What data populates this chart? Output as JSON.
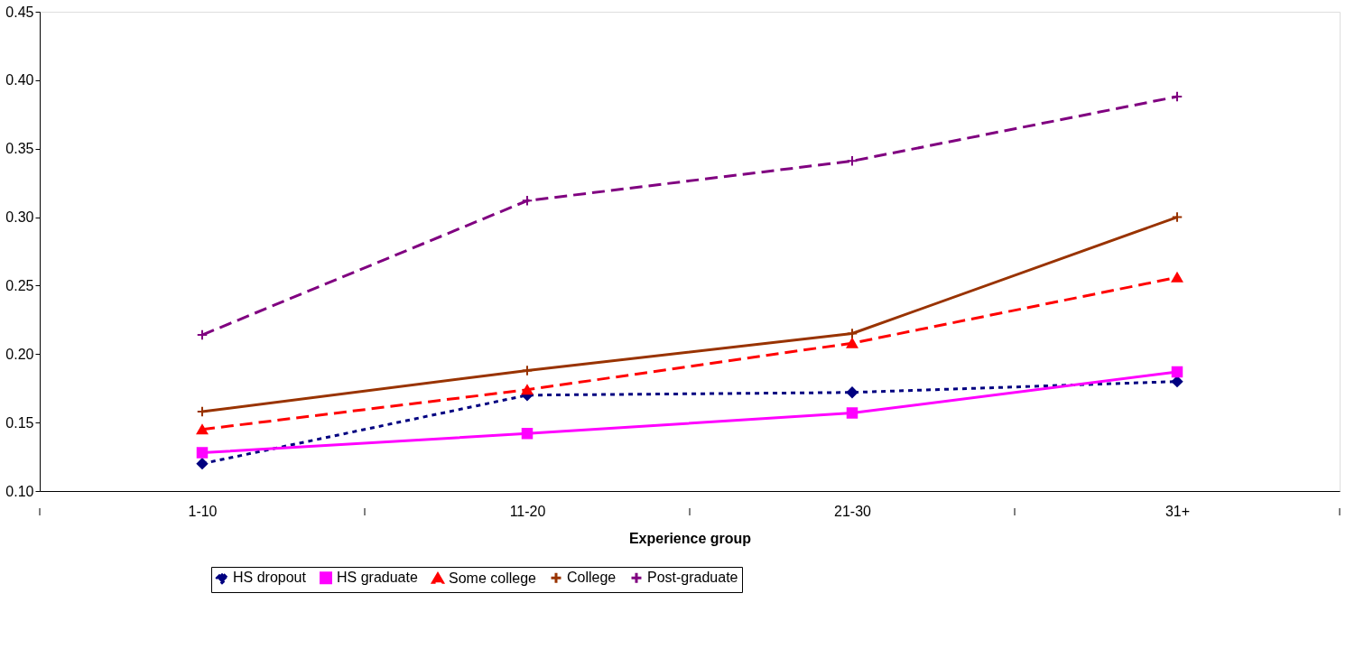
{
  "chart_data": {
    "type": "line",
    "xlabel": "Experience group",
    "categories": [
      "1-10",
      "11-20",
      "21-30",
      "31+"
    ],
    "series": [
      {
        "name": "HS dropout",
        "color": "#000080",
        "values": [
          0.12,
          0.17,
          0.172,
          0.18
        ],
        "marker": "diamond",
        "line_style": "dotted"
      },
      {
        "name": "HS graduate",
        "color": "#ff00ff",
        "values": [
          0.128,
          0.142,
          0.157,
          0.187
        ],
        "marker": "square",
        "line_style": "solid"
      },
      {
        "name": "Some college",
        "color": "#ff0000",
        "values": [
          0.145,
          0.174,
          0.208,
          0.256
        ],
        "marker": "triangle",
        "line_style": "dashed"
      },
      {
        "name": "College",
        "color": "#993300",
        "values": [
          0.158,
          0.188,
          0.215,
          0.3
        ],
        "marker": "cross",
        "line_style": "solid"
      },
      {
        "name": "Post-graduate",
        "color": "#800080",
        "values": [
          0.214,
          0.312,
          0.341,
          0.388
        ],
        "marker": "cross",
        "line_style": "dashed"
      }
    ],
    "ylim": [
      0.1,
      0.45
    ],
    "yticks": [
      {
        "value": 0.1,
        "label": "0.10"
      },
      {
        "value": 0.15,
        "label": "0.15"
      },
      {
        "value": 0.2,
        "label": "0.20"
      },
      {
        "value": 0.25,
        "label": "0.25"
      },
      {
        "value": 0.3,
        "label": "0.30"
      },
      {
        "value": 0.35,
        "label": "0.35"
      },
      {
        "value": 0.4,
        "label": "0.40"
      },
      {
        "value": 0.45,
        "label": "0.45"
      }
    ],
    "grid": false,
    "legend": "bottom"
  }
}
